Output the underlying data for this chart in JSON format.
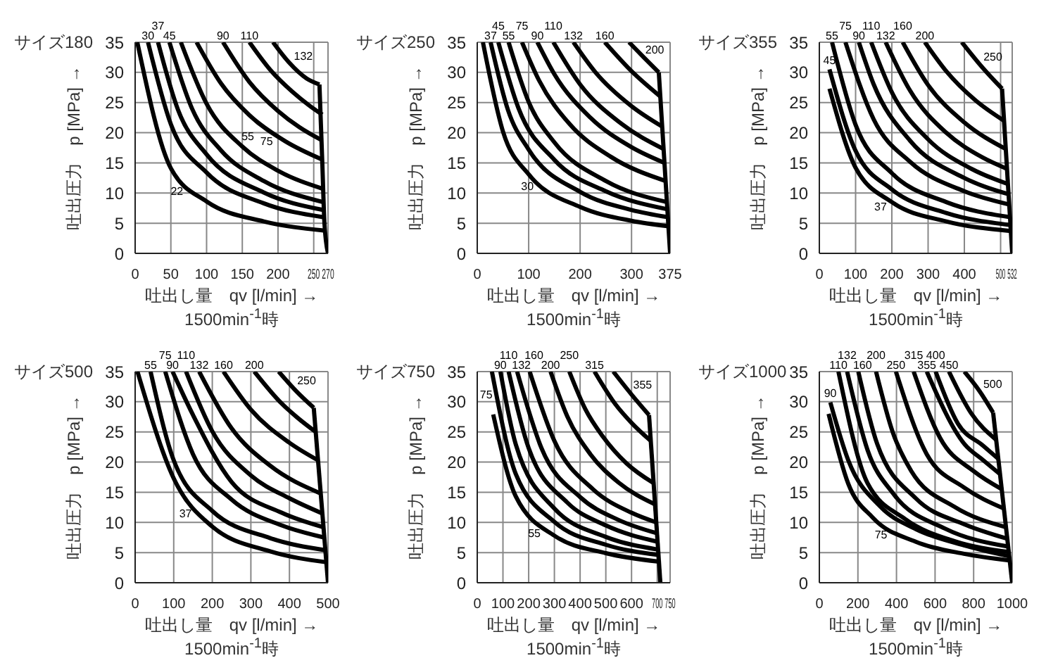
{
  "chart_data": [
    {
      "type": "line",
      "title": "サイズ180",
      "xlabel": "吐出し量　qv [l/min] →",
      "ylabel": "吐出圧力　p [MPa] →",
      "annotations": [
        "1500min$^{-1}$時"
      ],
      "xlim": [
        0,
        270
      ],
      "xticks": [
        0,
        50,
        100,
        150,
        200,
        250,
        270
      ],
      "ylim": [
        0,
        35
      ],
      "yticks": [
        0,
        5,
        10,
        15,
        20,
        25,
        30,
        35
      ],
      "grid": true,
      "marker": "none",
      "series": [
        {
          "name": "22",
          "color": "#000000",
          "x": [
            3,
            50,
            100,
            180,
            264
          ],
          "values": [
            35,
            14.1,
            8.6,
            5.3,
            3.8
          ]
        },
        {
          "name": "30",
          "color": "#000000",
          "x": [
            18,
            50,
            100,
            180,
            263
          ],
          "values": [
            35,
            21.4,
            13.4,
            8.3,
            6
          ]
        },
        {
          "name": "37",
          "color": "#000000",
          "x": [
            32,
            60,
            100,
            180,
            263
          ],
          "values": [
            35,
            23.8,
            16.4,
            10.1,
            7.2
          ]
        },
        {
          "name": "45",
          "color": "#000000",
          "x": [
            48,
            80,
            120,
            180,
            263
          ],
          "values": [
            35,
            23.9,
            17.1,
            12,
            8.5
          ]
        },
        {
          "name": "55",
          "color": "#000000",
          "x": [
            64,
            100,
            150,
            200,
            263
          ],
          "values": [
            35,
            24.8,
            17.7,
            13.7,
            10.7
          ]
        },
        {
          "name": "75",
          "color": "#000000",
          "x": [
            86,
            120,
            160,
            210,
            263
          ],
          "values": [
            35,
            28.2,
            22.9,
            18.6,
            15.5
          ]
        },
        {
          "name": "90",
          "color": "#000000",
          "x": [
            123,
            160,
            200,
            230,
            262
          ],
          "values": [
            35,
            28.4,
            23.6,
            20.9,
            18.7
          ]
        },
        {
          "name": "110",
          "color": "#000000",
          "x": [
            160,
            190,
            220,
            245,
            262
          ],
          "values": [
            35,
            30.3,
            26.8,
            24.4,
            23
          ]
        },
        {
          "name": "132",
          "color": "#000000",
          "x": [
            193,
            215,
            240,
            258
          ],
          "values": [
            35,
            31.7,
            29,
            28
          ]
        },
        {
          "color": "#000000",
          "x": [
            258,
            262,
            265,
            270
          ],
          "values": [
            28,
            15,
            5,
            0
          ]
        }
      ]
    },
    {
      "type": "line",
      "title": "サイズ250",
      "xlabel": "吐出し量　qv [l/min] →",
      "ylabel": "吐出圧力　p [MPa] →",
      "annotations": [
        "1500min$^{-1}$時"
      ],
      "xlim": [
        0,
        375
      ],
      "xticks": [
        0,
        100,
        200,
        300,
        375
      ],
      "ylim": [
        0,
        35
      ],
      "yticks": [
        0,
        5,
        10,
        15,
        20,
        25,
        30,
        35
      ],
      "grid": true,
      "marker": "none",
      "series": [
        {
          "name": "30",
          "color": "#000000",
          "x": [
            11,
            50,
            100,
            200,
            300,
            372
          ],
          "values": [
            35,
            20.2,
            13.1,
            7.7,
            5.4,
            4.5
          ]
        },
        {
          "name": "37",
          "color": "#000000",
          "x": [
            26,
            60,
            100,
            200,
            300,
            371
          ],
          "values": [
            35,
            23.7,
            17.2,
            10.2,
            7.2,
            6
          ]
        },
        {
          "name": "45",
          "color": "#000000",
          "x": [
            41,
            80,
            150,
            250,
            370
          ],
          "values": [
            35,
            24.1,
            15.5,
            10.3,
            7.3
          ]
        },
        {
          "name": "55",
          "color": "#000000",
          "x": [
            61,
            100,
            150,
            250,
            369
          ],
          "values": [
            35,
            25.1,
            18.4,
            12,
            8.5
          ]
        },
        {
          "name": "75",
          "color": "#000000",
          "x": [
            87,
            120,
            180,
            260,
            366
          ],
          "values": [
            35,
            28.7,
            21.4,
            16,
            12
          ]
        },
        {
          "name": "90",
          "color": "#000000",
          "x": [
            117,
            150,
            220,
            300,
            364
          ],
          "values": [
            35,
            29.7,
            22.5,
            17.6,
            15
          ]
        },
        {
          "name": "110",
          "color": "#000000",
          "x": [
            148,
            200,
            280,
            362
          ],
          "values": [
            35,
            28,
            21.5,
            17.3
          ]
        },
        {
          "name": "132",
          "color": "#000000",
          "x": [
            187,
            230,
            300,
            360
          ],
          "values": [
            35,
            30,
            24.4,
            21
          ]
        },
        {
          "name": "160",
          "color": "#000000",
          "x": [
            248,
            300,
            356
          ],
          "values": [
            35,
            30.2,
            26
          ]
        },
        {
          "name": "200",
          "color": "#000000",
          "x": [
            295,
            325,
            353
          ],
          "values": [
            35,
            32.4,
            30
          ]
        },
        {
          "color": "#000000",
          "x": [
            353,
            375
          ],
          "values": [
            30,
            0
          ]
        }
      ]
    },
    {
      "type": "line",
      "title": "サイズ355",
      "xlabel": "吐出し量　qv [l/min] →",
      "ylabel": "吐出圧力　p [MPa] →",
      "annotations": [
        "1500min$^{-1}$時"
      ],
      "xlim": [
        0,
        532
      ],
      "xticks": [
        0,
        100,
        200,
        300,
        400,
        500,
        532
      ],
      "ylim": [
        0,
        35
      ],
      "yticks": [
        0,
        5,
        10,
        15,
        20,
        25,
        30,
        35
      ],
      "grid": true,
      "marker": "none",
      "series": [
        {
          "name": "37",
          "color": "#000000",
          "x": [
            28,
            100,
            200,
            350,
            528
          ],
          "values": [
            27.3,
            14.2,
            8.5,
            5.3,
            3.7
          ]
        },
        {
          "name": "45",
          "color": "#000000",
          "x": [
            28,
            100,
            200,
            350,
            527
          ],
          "values": [
            30.5,
            17,
            10.6,
            6.7,
            4.7
          ]
        },
        {
          "name": "55",
          "color": "#000000",
          "x": [
            35,
            100,
            200,
            350,
            526
          ],
          "values": [
            35,
            21.3,
            13.3,
            8.5,
            6
          ]
        },
        {
          "name": "75",
          "color": "#000000",
          "x": [
            72,
            150,
            250,
            400,
            524
          ],
          "values": [
            35,
            22.2,
            15.2,
            10.3,
            8.1
          ]
        },
        {
          "name": "90",
          "color": "#000000",
          "x": [
            109,
            150,
            250,
            400,
            522
          ],
          "values": [
            35,
            28,
            18.7,
            12.5,
            9.8
          ]
        },
        {
          "name": "110",
          "color": "#000000",
          "x": [
            143,
            200,
            300,
            420,
            520
          ],
          "values": [
            35,
            26.7,
            18.9,
            14,
            11.5
          ]
        },
        {
          "name": "132",
          "color": "#000000",
          "x": [
            183,
            250,
            350,
            450,
            518
          ],
          "values": [
            35,
            27,
            20,
            15.9,
            14
          ]
        },
        {
          "name": "160",
          "color": "#000000",
          "x": [
            230,
            300,
            400,
            514
          ],
          "values": [
            35,
            27.9,
            21.7,
            17.3
          ]
        },
        {
          "name": "200",
          "color": "#000000",
          "x": [
            291,
            350,
            430,
            509
          ],
          "values": [
            35,
            30.2,
            25.4,
            22
          ]
        },
        {
          "name": "250",
          "color": "#000000",
          "x": [
            393,
            450,
            504
          ],
          "values": [
            35,
            30.8,
            27.3
          ]
        },
        {
          "color": "#000000",
          "x": [
            504,
            532
          ],
          "values": [
            27.3,
            0
          ]
        }
      ]
    },
    {
      "type": "line",
      "title": "サイズ500",
      "xlabel": "吐出し量　qv [l/min] →",
      "ylabel": "吐出圧力　p [MPa] →",
      "annotations": [
        "1500min$^{-1}$時"
      ],
      "xlim": [
        0,
        500
      ],
      "xticks": [
        0,
        100,
        200,
        300,
        400,
        500
      ],
      "ylim": [
        0,
        35
      ],
      "yticks": [
        0,
        5,
        10,
        15,
        20,
        25,
        30,
        35
      ],
      "grid": true,
      "marker": "none",
      "series": [
        {
          "name": "37",
          "color": "#000000",
          "x": [
            6,
            100,
            200,
            350,
            496
          ],
          "values": [
            35,
            17.3,
            9.3,
            5.2,
            3.4
          ]
        },
        {
          "name": "55",
          "color": "#000000",
          "x": [
            40,
            100,
            200,
            350,
            493
          ],
          "values": [
            35,
            20.3,
            11.9,
            7.4,
            5.4
          ]
        },
        {
          "name": "75",
          "color": "#000000",
          "x": [
            78,
            150,
            250,
            380,
            490
          ],
          "values": [
            35,
            21.3,
            13.8,
            9.5,
            7.5
          ]
        },
        {
          "name": "90",
          "color": "#000000",
          "x": [
            97,
            150,
            250,
            380,
            488
          ],
          "values": [
            35,
            27.8,
            16.7,
            11.6,
            9.2
          ]
        },
        {
          "name": "110",
          "color": "#000000",
          "x": [
            132,
            200,
            300,
            400,
            485
          ],
          "values": [
            35,
            25.1,
            17.8,
            14,
            11.5
          ]
        },
        {
          "name": "132",
          "color": "#000000",
          "x": [
            166,
            250,
            350,
            481
          ],
          "values": [
            35,
            25.6,
            19.4,
            14.8
          ]
        },
        {
          "name": "160",
          "color": "#000000",
          "x": [
            229,
            300,
            400,
            474
          ],
          "values": [
            35,
            28.7,
            23.2,
            20.3
          ]
        },
        {
          "name": "200",
          "color": "#000000",
          "x": [
            309,
            380,
            420,
            468
          ],
          "values": [
            35,
            29.7,
            27.4,
            25
          ]
        },
        {
          "name": "250",
          "color": "#000000",
          "x": [
            372,
            420,
            463
          ],
          "values": [
            35,
            31.6,
            29
          ]
        },
        {
          "color": "#000000",
          "x": [
            463,
            500
          ],
          "values": [
            29,
            0
          ]
        }
      ]
    },
    {
      "type": "line",
      "title": "サイズ750",
      "xlabel": "吐出し量　qv [l/min] →",
      "ylabel": "吐出圧力　p [MPa] →",
      "annotations": [
        "1500min$^{-1}$時"
      ],
      "xlim": [
        0,
        750
      ],
      "xticks": [
        0,
        100,
        200,
        300,
        400,
        500,
        600,
        700,
        750
      ],
      "ylim": [
        0,
        35
      ],
      "yticks": [
        0,
        5,
        10,
        15,
        20,
        25,
        30,
        35
      ],
      "grid": true,
      "marker": "none",
      "series": [
        {
          "name": "55",
          "color": "#000000",
          "x": [
            62,
            150,
            300,
            500,
            707
          ],
          "values": [
            27.9,
            14.3,
            7.8,
            4.9,
            3.5
          ]
        },
        {
          "name": "75",
          "color": "#000000",
          "x": [
            57,
            150,
            300,
            500,
            705
          ],
          "values": [
            35,
            18,
            10.1,
            6.3,
            4.6
          ]
        },
        {
          "name": "90",
          "color": "#000000",
          "x": [
            90,
            150,
            300,
            500,
            703
          ],
          "values": [
            35,
            22.9,
            12.3,
            7.6,
            5.5
          ]
        },
        {
          "name": "110",
          "color": "#000000",
          "x": [
            122,
            200,
            350,
            500,
            701
          ],
          "values": [
            35,
            22.3,
            13.3,
            9.5,
            6.8
          ]
        },
        {
          "name": "132",
          "color": "#000000",
          "x": [
            155,
            250,
            400,
            550,
            699
          ],
          "values": [
            35,
            22.3,
            14.2,
            10.4,
            8.2
          ]
        },
        {
          "name": "160",
          "color": "#000000",
          "x": [
            204,
            300,
            450,
            600,
            696
          ],
          "values": [
            35,
            23.5,
            15.5,
            11.6,
            10
          ]
        },
        {
          "name": "200",
          "color": "#000000",
          "x": [
            285,
            350,
            440,
            550,
            691
          ],
          "values": [
            35,
            27.6,
            21.3,
            16.6,
            13
          ]
        },
        {
          "name": "250",
          "color": "#000000",
          "x": [
            358,
            420,
            489,
            580,
            686
          ],
          "values": [
            35,
            28.8,
            24.2,
            19.8,
            16.5
          ]
        },
        {
          "name": "315",
          "color": "#000000",
          "x": [
            456,
            537,
            600,
            675
          ],
          "values": [
            35,
            29.6,
            26.5,
            23.5
          ]
        },
        {
          "name": "355",
          "color": "#000000",
          "x": [
            529,
            600,
            668
          ],
          "values": [
            35,
            31.2,
            27.8
          ]
        },
        {
          "color": "#000000",
          "x": [
            668,
            712
          ],
          "values": [
            27.8,
            0
          ]
        }
      ]
    },
    {
      "type": "line",
      "title": "サイズ1000",
      "xlabel": "吐出し量　qv [l/min] →",
      "ylabel": "吐出圧力　p [MPa] →",
      "annotations": [
        "1500min$^{-1}$時"
      ],
      "xlim": [
        0,
        1000
      ],
      "xticks": [
        0,
        200,
        400,
        600,
        800,
        1000
      ],
      "ylim": [
        0,
        35
      ],
      "yticks": [
        0,
        5,
        10,
        15,
        20,
        25,
        30,
        35
      ],
      "grid": true,
      "marker": "none",
      "series": [
        {
          "name": "75",
          "color": "#000000",
          "x": [
            48,
            150,
            277,
            500,
            750,
            985
          ],
          "values": [
            28,
            16.4,
            10.8,
            6.8,
            4.8,
            3.7
          ]
        },
        {
          "name": "90",
          "color": "#000000",
          "x": [
            57,
            150,
            317,
            500,
            750,
            983
          ],
          "values": [
            29.9,
            20.3,
            12.6,
            8.9,
            6.2,
            4.4
          ]
        },
        {
          "name": "110",
          "color": "#000000",
          "x": [
            99,
            250,
            443,
            700,
            981
          ],
          "values": [
            35,
            16.5,
            10.6,
            6.9,
            5.1
          ]
        },
        {
          "name": "132",
          "color": "#000000",
          "x": [
            144,
            250,
            385,
            650,
            978
          ],
          "values": [
            35,
            22,
            14.7,
            9,
            6
          ]
        },
        {
          "name": "160",
          "color": "#000000",
          "x": [
            202,
            300,
            500,
            750,
            974
          ],
          "values": [
            35,
            23,
            14,
            9.7,
            7.3
          ]
        },
        {
          "name": "200",
          "color": "#000000",
          "x": [
            294,
            380,
            477,
            700,
            968
          ],
          "values": [
            35,
            25,
            18.5,
            12.6,
            9.2
          ]
        },
        {
          "name": "250",
          "color": "#000000",
          "x": [
            397,
            557,
            750,
            957
          ],
          "values": [
            35,
            21.3,
            15.8,
            12.3
          ]
        },
        {
          "name": "315",
          "color": "#000000",
          "x": [
            489,
            626,
            800,
            946
          ],
          "values": [
            35,
            24,
            18.5,
            15.5
          ]
        },
        {
          "name": "355",
          "color": "#000000",
          "x": [
            557,
            752,
            850,
            937
          ],
          "values": [
            35,
            23,
            20.3,
            18
          ]
        },
        {
          "name": "400",
          "color": "#000000",
          "x": [
            603,
            718,
            850,
            929
          ],
          "values": [
            35,
            26.4,
            22.7,
            20.5
          ]
        },
        {
          "name": "450",
          "color": "#000000",
          "x": [
            672,
            787,
            917
          ],
          "values": [
            35,
            28.1,
            23.7
          ]
        },
        {
          "name": "500",
          "color": "#000000",
          "x": [
            752,
            830,
            901
          ],
          "values": [
            35,
            31.8,
            28.2
          ]
        },
        {
          "color": "#000000",
          "x": [
            901,
            1000
          ],
          "values": [
            28.2,
            0
          ]
        }
      ]
    }
  ]
}
